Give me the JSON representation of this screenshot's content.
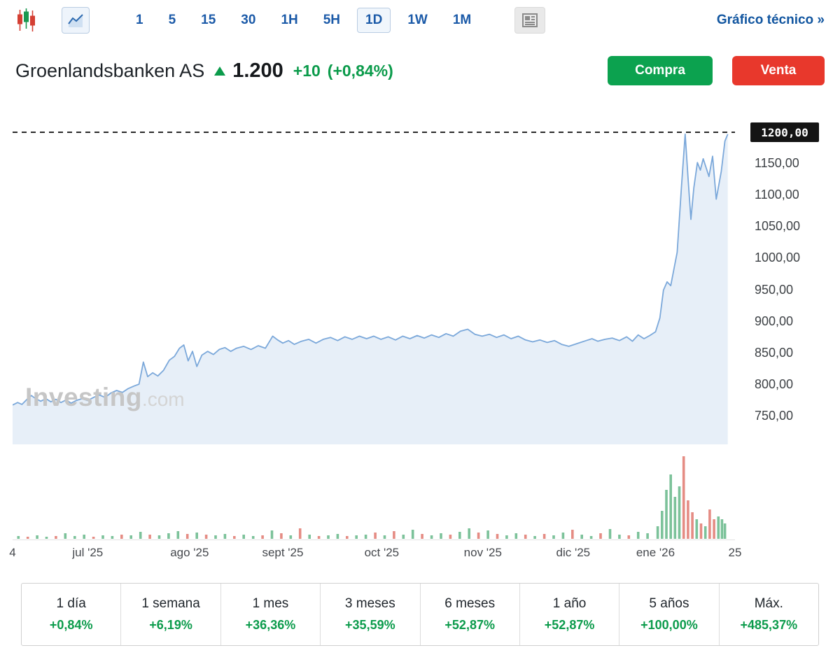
{
  "colors": {
    "accent_green": "#0b9b4b",
    "accent_red": "#e8382c",
    "link_blue": "#1b5aa8",
    "line": "#7ba8da",
    "fill": "#e7eff8",
    "volume_up": "#7cc29a",
    "volume_down": "#e58c84",
    "dashed": "#2a2a2a"
  },
  "toolbar": {
    "intervals": [
      {
        "label": "1"
      },
      {
        "label": "5"
      },
      {
        "label": "15"
      },
      {
        "label": "30"
      },
      {
        "label": "1H"
      },
      {
        "label": "5H"
      },
      {
        "label": "1D",
        "selected": true
      },
      {
        "label": "1W"
      },
      {
        "label": "1M"
      }
    ],
    "technical_link": "Gráfico técnico »"
  },
  "header": {
    "name": "Groenlandsbanken AS",
    "price": "1.200",
    "change": "+10",
    "change_pct": "(+0,84%)",
    "buy_label": "Compra",
    "sell_label": "Venta"
  },
  "chart": {
    "watermark_main": "Investing",
    "watermark_suffix": ".com",
    "price_tag": "1200,00"
  },
  "chart_data": {
    "type": "area",
    "title": "Groenlandsbanken AS precio diario (1D)",
    "ylim": [
      735,
      1215
    ],
    "dashed_level": 1200,
    "grid": false,
    "legend": "none",
    "y_ticks": [
      {
        "value": 1200,
        "label": "1200,00"
      },
      {
        "value": 1150,
        "label": "1150,00"
      },
      {
        "value": 1100,
        "label": "1100,00"
      },
      {
        "value": 1050,
        "label": "1050,00"
      },
      {
        "value": 1000,
        "label": "1000,00"
      },
      {
        "value": 950,
        "label": "950,00"
      },
      {
        "value": 900,
        "label": "900,00"
      },
      {
        "value": 850,
        "label": "850,00"
      },
      {
        "value": 800,
        "label": "800,00"
      },
      {
        "value": 750,
        "label": "750,00"
      }
    ],
    "x_ticks": [
      {
        "label": "4",
        "pos": 0
      },
      {
        "label": "jul '25",
        "pos": 10.4
      },
      {
        "label": "ago '25",
        "pos": 24.5
      },
      {
        "label": "sept '25",
        "pos": 37.4
      },
      {
        "label": "oct '25",
        "pos": 51.1
      },
      {
        "label": "nov '25",
        "pos": 65.1
      },
      {
        "label": "dic '25",
        "pos": 77.6
      },
      {
        "label": "ene '26",
        "pos": 89.0
      },
      {
        "label": "25",
        "pos": 100
      }
    ],
    "series": [
      {
        "name": "price",
        "points": [
          [
            0,
            768
          ],
          [
            0.7,
            772
          ],
          [
            1.3,
            769
          ],
          [
            2,
            777
          ],
          [
            2.6,
            783
          ],
          [
            3.2,
            778
          ],
          [
            3.9,
            774
          ],
          [
            4.6,
            778
          ],
          [
            5.3,
            773
          ],
          [
            6,
            777
          ],
          [
            6.7,
            772
          ],
          [
            7.4,
            776
          ],
          [
            8.1,
            771
          ],
          [
            8.8,
            775
          ],
          [
            9.6,
            778
          ],
          [
            10.4,
            775
          ],
          [
            11.2,
            780
          ],
          [
            12,
            784
          ],
          [
            12.8,
            780
          ],
          [
            13.6,
            787
          ],
          [
            14.4,
            791
          ],
          [
            15.2,
            788
          ],
          [
            16,
            794
          ],
          [
            16.8,
            798
          ],
          [
            17.5,
            801
          ],
          [
            18.1,
            836
          ],
          [
            18.7,
            813
          ],
          [
            19.4,
            819
          ],
          [
            20.1,
            814
          ],
          [
            20.9,
            823
          ],
          [
            21.7,
            839
          ],
          [
            22.4,
            845
          ],
          [
            23.1,
            858
          ],
          [
            23.7,
            863
          ],
          [
            24.3,
            838
          ],
          [
            24.9,
            853
          ],
          [
            25.5,
            829
          ],
          [
            26.2,
            847
          ],
          [
            27,
            853
          ],
          [
            27.8,
            848
          ],
          [
            28.6,
            856
          ],
          [
            29.4,
            859
          ],
          [
            30.2,
            853
          ],
          [
            31,
            858
          ],
          [
            32,
            861
          ],
          [
            33,
            856
          ],
          [
            34,
            862
          ],
          [
            35,
            858
          ],
          [
            36,
            877
          ],
          [
            36.7,
            871
          ],
          [
            37.4,
            866
          ],
          [
            38.2,
            870
          ],
          [
            39,
            864
          ],
          [
            40,
            869
          ],
          [
            41,
            872
          ],
          [
            42,
            866
          ],
          [
            43,
            872
          ],
          [
            44,
            875
          ],
          [
            45,
            870
          ],
          [
            46,
            876
          ],
          [
            47,
            872
          ],
          [
            48,
            877
          ],
          [
            49,
            873
          ],
          [
            50,
            877
          ],
          [
            51,
            872
          ],
          [
            52,
            876
          ],
          [
            53,
            871
          ],
          [
            54,
            877
          ],
          [
            55,
            873
          ],
          [
            56,
            878
          ],
          [
            57,
            874
          ],
          [
            58,
            879
          ],
          [
            59,
            875
          ],
          [
            60,
            881
          ],
          [
            61,
            877
          ],
          [
            62,
            885
          ],
          [
            63,
            888
          ],
          [
            64,
            880
          ],
          [
            65,
            877
          ],
          [
            66,
            880
          ],
          [
            67,
            875
          ],
          [
            68,
            879
          ],
          [
            69,
            873
          ],
          [
            70,
            877
          ],
          [
            71,
            871
          ],
          [
            72,
            868
          ],
          [
            73,
            871
          ],
          [
            74,
            867
          ],
          [
            75,
            870
          ],
          [
            76,
            864
          ],
          [
            77,
            861
          ],
          [
            77.8,
            864
          ],
          [
            78.6,
            867
          ],
          [
            79.4,
            870
          ],
          [
            80.2,
            873
          ],
          [
            81,
            869
          ],
          [
            82,
            872
          ],
          [
            83,
            874
          ],
          [
            84,
            870
          ],
          [
            85,
            876
          ],
          [
            85.8,
            869
          ],
          [
            86.6,
            879
          ],
          [
            87.4,
            873
          ],
          [
            88.2,
            878
          ],
          [
            89,
            884
          ],
          [
            89.6,
            906
          ],
          [
            90.1,
            950
          ],
          [
            90.6,
            963
          ],
          [
            91.1,
            957
          ],
          [
            92,
            1010
          ],
          [
            92.6,
            1115
          ],
          [
            93.1,
            1197
          ],
          [
            93.5,
            1128
          ],
          [
            93.9,
            1062
          ],
          [
            94.3,
            1112
          ],
          [
            94.8,
            1152
          ],
          [
            95.2,
            1140
          ],
          [
            95.6,
            1158
          ],
          [
            96,
            1144
          ],
          [
            96.4,
            1130
          ],
          [
            96.9,
            1162
          ],
          [
            97.4,
            1094
          ],
          [
            98.1,
            1138
          ],
          [
            98.6,
            1186
          ],
          [
            99,
            1197
          ]
        ]
      }
    ],
    "volume_bars": [
      [
        0.8,
        4,
        "g"
      ],
      [
        2.1,
        3,
        "r"
      ],
      [
        3.4,
        5,
        "g"
      ],
      [
        4.7,
        3,
        "g"
      ],
      [
        6,
        4,
        "r"
      ],
      [
        7.3,
        8,
        "g"
      ],
      [
        8.6,
        4,
        "g"
      ],
      [
        9.9,
        6,
        "g"
      ],
      [
        11.2,
        3,
        "r"
      ],
      [
        12.5,
        5,
        "g"
      ],
      [
        13.8,
        4,
        "g"
      ],
      [
        15.1,
        6,
        "r"
      ],
      [
        16.4,
        5,
        "g"
      ],
      [
        17.7,
        10,
        "g"
      ],
      [
        19,
        6,
        "r"
      ],
      [
        20.3,
        5,
        "g"
      ],
      [
        21.6,
        8,
        "g"
      ],
      [
        22.9,
        11,
        "g"
      ],
      [
        24.2,
        7,
        "r"
      ],
      [
        25.5,
        9,
        "g"
      ],
      [
        26.8,
        6,
        "r"
      ],
      [
        28.1,
        5,
        "g"
      ],
      [
        29.4,
        7,
        "g"
      ],
      [
        30.7,
        4,
        "r"
      ],
      [
        32,
        6,
        "g"
      ],
      [
        33.3,
        4,
        "g"
      ],
      [
        34.6,
        5,
        "r"
      ],
      [
        35.9,
        12,
        "g"
      ],
      [
        37.2,
        8,
        "r"
      ],
      [
        38.5,
        5,
        "g"
      ],
      [
        39.8,
        15,
        "r"
      ],
      [
        41.1,
        6,
        "g"
      ],
      [
        42.4,
        4,
        "r"
      ],
      [
        43.7,
        5,
        "g"
      ],
      [
        45,
        7,
        "g"
      ],
      [
        46.3,
        4,
        "r"
      ],
      [
        47.6,
        5,
        "g"
      ],
      [
        48.9,
        6,
        "g"
      ],
      [
        50.2,
        9,
        "r"
      ],
      [
        51.5,
        5,
        "g"
      ],
      [
        52.8,
        11,
        "r"
      ],
      [
        54.1,
        6,
        "g"
      ],
      [
        55.4,
        13,
        "g"
      ],
      [
        56.7,
        7,
        "r"
      ],
      [
        58,
        5,
        "g"
      ],
      [
        59.3,
        8,
        "g"
      ],
      [
        60.6,
        6,
        "r"
      ],
      [
        61.9,
        10,
        "g"
      ],
      [
        63.2,
        15,
        "g"
      ],
      [
        64.5,
        9,
        "r"
      ],
      [
        65.8,
        12,
        "g"
      ],
      [
        67.1,
        7,
        "r"
      ],
      [
        68.4,
        5,
        "g"
      ],
      [
        69.7,
        8,
        "g"
      ],
      [
        71,
        6,
        "r"
      ],
      [
        72.3,
        4,
        "g"
      ],
      [
        73.6,
        7,
        "r"
      ],
      [
        74.9,
        5,
        "g"
      ],
      [
        76.2,
        9,
        "g"
      ],
      [
        77.5,
        13,
        "r"
      ],
      [
        78.8,
        6,
        "g"
      ],
      [
        80.1,
        4,
        "g"
      ],
      [
        81.4,
        8,
        "r"
      ],
      [
        82.7,
        14,
        "g"
      ],
      [
        84,
        6,
        "g"
      ],
      [
        85.3,
        5,
        "r"
      ],
      [
        86.6,
        10,
        "g"
      ],
      [
        87.9,
        8,
        "g"
      ],
      [
        89.3,
        18,
        "g"
      ],
      [
        89.9,
        40,
        "g"
      ],
      [
        90.5,
        70,
        "g"
      ],
      [
        91.1,
        92,
        "g"
      ],
      [
        91.7,
        60,
        "g"
      ],
      [
        92.3,
        75,
        "g"
      ],
      [
        92.9,
        118,
        "r"
      ],
      [
        93.5,
        55,
        "r"
      ],
      [
        94.1,
        38,
        "r"
      ],
      [
        94.7,
        28,
        "g"
      ],
      [
        95.3,
        22,
        "r"
      ],
      [
        95.9,
        18,
        "g"
      ],
      [
        96.5,
        42,
        "r"
      ],
      [
        97.1,
        28,
        "r"
      ],
      [
        97.7,
        32,
        "g"
      ],
      [
        98.2,
        28,
        "g"
      ],
      [
        98.6,
        22,
        "g"
      ]
    ]
  },
  "performance": [
    {
      "label": "1 día",
      "value": "+0,84%"
    },
    {
      "label": "1 semana",
      "value": "+6,19%"
    },
    {
      "label": "1 mes",
      "value": "+36,36%"
    },
    {
      "label": "3 meses",
      "value": "+35,59%"
    },
    {
      "label": "6 meses",
      "value": "+52,87%"
    },
    {
      "label": "1 año",
      "value": "+52,87%"
    },
    {
      "label": "5 años",
      "value": "+100,00%"
    },
    {
      "label": "Máx.",
      "value": "+485,37%"
    }
  ]
}
